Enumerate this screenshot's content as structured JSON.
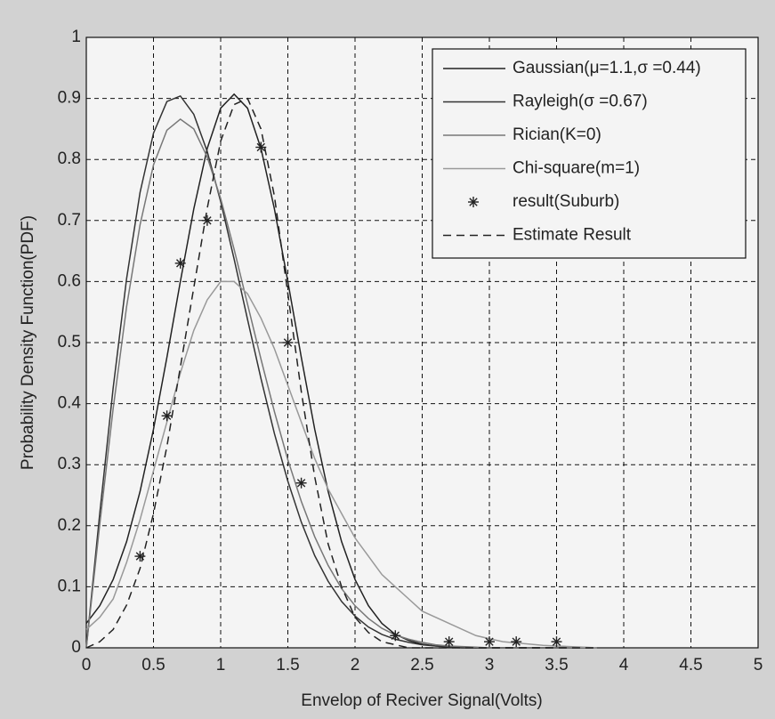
{
  "chart_data": {
    "type": "line",
    "xlabel": "Envelop of Reciver Signal(Volts)",
    "ylabel": "Probability Density Function(PDF)",
    "xlim": [
      0,
      5
    ],
    "ylim": [
      0,
      1
    ],
    "xticks": [
      0,
      0.5,
      1,
      1.5,
      2,
      2.5,
      3,
      3.5,
      4,
      4.5,
      5
    ],
    "yticks": [
      0,
      0.1,
      0.2,
      0.3,
      0.4,
      0.5,
      0.6,
      0.7,
      0.8,
      0.9,
      1
    ],
    "grid": true,
    "legend": "upper right",
    "x": [
      0,
      0.1,
      0.2,
      0.3,
      0.4,
      0.5,
      0.6,
      0.7,
      0.8,
      0.9,
      1,
      1.1,
      1.2,
      1.3,
      1.4,
      1.5,
      1.6,
      1.7,
      1.8,
      1.9,
      2,
      2.1,
      2.2,
      2.3,
      2.4,
      2.5,
      2.6,
      2.7,
      2.8,
      2.9,
      3,
      3.1,
      3.2,
      3.3,
      3.4,
      3.5,
      3.6,
      3.7,
      3.8
    ],
    "series": [
      {
        "name": "Gaussian(μ=1.1,σ =0.44)",
        "color": "#222222",
        "style": "solid",
        "values": [
          0.04,
          0.069,
          0.112,
          0.174,
          0.256,
          0.358,
          0.476,
          0.6,
          0.719,
          0.818,
          0.884,
          0.907,
          0.884,
          0.818,
          0.719,
          0.6,
          0.476,
          0.358,
          0.256,
          0.174,
          0.112,
          0.069,
          0.04,
          0.022,
          0.012,
          0.006,
          0.003,
          0.001,
          0,
          0,
          0,
          0,
          0,
          0,
          0,
          0,
          0,
          0,
          0
        ]
      },
      {
        "name": "Rayleigh(σ =0.67)",
        "color": "#333333",
        "style": "solid",
        "values": [
          0,
          0.22,
          0.426,
          0.605,
          0.746,
          0.843,
          0.895,
          0.904,
          0.874,
          0.813,
          0.731,
          0.637,
          0.538,
          0.441,
          0.351,
          0.273,
          0.206,
          0.151,
          0.109,
          0.076,
          0.052,
          0.034,
          0.022,
          0.014,
          0.009,
          0.005,
          0.003,
          0.002,
          0.001,
          0,
          0,
          0,
          0,
          0,
          0,
          0,
          0,
          0,
          0
        ]
      },
      {
        "name": "Rician(K=0)",
        "color": "#777777",
        "style": "solid",
        "values": [
          0,
          0.202,
          0.392,
          0.559,
          0.693,
          0.791,
          0.848,
          0.866,
          0.85,
          0.804,
          0.736,
          0.653,
          0.563,
          0.473,
          0.387,
          0.308,
          0.24,
          0.182,
          0.135,
          0.097,
          0.069,
          0.048,
          0.032,
          0.021,
          0.014,
          0.009,
          0.005,
          0.003,
          0.002,
          0.001,
          0,
          0,
          0,
          0,
          0,
          0,
          0,
          0,
          0
        ]
      },
      {
        "name": "Chi-square(m=1)",
        "color": "#999999",
        "style": "solid",
        "values": [
          0.03,
          0.05,
          0.08,
          0.14,
          0.21,
          0.29,
          0.37,
          0.45,
          0.52,
          0.57,
          0.6,
          0.6,
          0.58,
          0.54,
          0.49,
          0.43,
          0.37,
          0.31,
          0.26,
          0.22,
          0.18,
          0.15,
          0.12,
          0.1,
          0.08,
          0.06,
          0.05,
          0.04,
          0.03,
          0.02,
          0.015,
          0.01,
          0.008,
          0.006,
          0.004,
          0.003,
          0.002,
          0.001,
          0
        ]
      },
      {
        "name": "result(Suburb)",
        "color": "#222222",
        "style": "marker",
        "x": [
          0.4,
          0.6,
          0.7,
          0.9,
          1.3,
          1.5,
          1.6,
          2.3,
          2.7,
          3.0,
          3.2,
          3.5
        ],
        "values": [
          0.15,
          0.38,
          0.63,
          0.7,
          0.82,
          0.5,
          0.27,
          0.02,
          0.01,
          0.01,
          0.01,
          0.01
        ]
      },
      {
        "name": "Estimate Result",
        "color": "#222222",
        "style": "dashed",
        "values": [
          0,
          0.01,
          0.03,
          0.07,
          0.13,
          0.22,
          0.33,
          0.46,
          0.59,
          0.72,
          0.83,
          0.89,
          0.9,
          0.85,
          0.74,
          0.58,
          0.42,
          0.28,
          0.17,
          0.1,
          0.05,
          0.025,
          0.01,
          0.005,
          0,
          0,
          0,
          0,
          0,
          0,
          0,
          0,
          0,
          0,
          0,
          0,
          0,
          0,
          0
        ]
      }
    ]
  }
}
